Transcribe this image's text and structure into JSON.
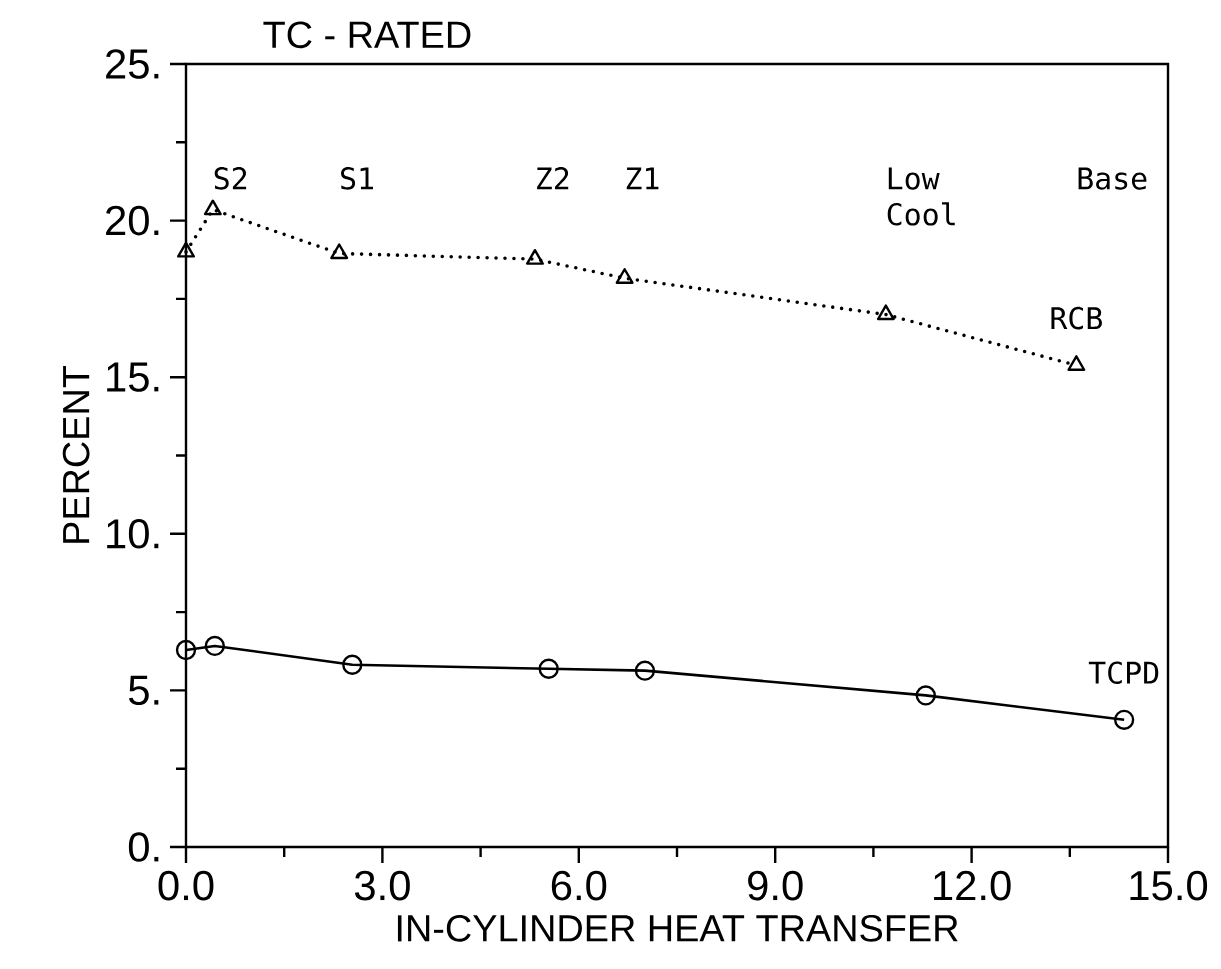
{
  "chart_data": {
    "type": "line",
    "title": "TC - RATED",
    "xlabel": "IN-CYLINDER HEAT TRANSFER",
    "ylabel": "PERCENT",
    "xlim": [
      0,
      15
    ],
    "ylim": [
      0,
      25
    ],
    "xticks": [
      {
        "value": 0,
        "label": "0.0"
      },
      {
        "value": 1.5,
        "label": null
      },
      {
        "value": 3,
        "label": "3.0"
      },
      {
        "value": 4.5,
        "label": null
      },
      {
        "value": 6,
        "label": "6.0"
      },
      {
        "value": 7.5,
        "label": null
      },
      {
        "value": 9,
        "label": "9.0"
      },
      {
        "value": 10.5,
        "label": null
      },
      {
        "value": 12,
        "label": "12.0"
      },
      {
        "value": 13.5,
        "label": null
      },
      {
        "value": 15,
        "label": "15.0"
      }
    ],
    "yticks": [
      {
        "value": 0,
        "label": "0."
      },
      {
        "value": 2.5,
        "label": null
      },
      {
        "value": 5,
        "label": "5."
      },
      {
        "value": 7.5,
        "label": null
      },
      {
        "value": 10,
        "label": "10."
      },
      {
        "value": 12.5,
        "label": null
      },
      {
        "value": 15,
        "label": "15."
      },
      {
        "value": 17.5,
        "label": null
      },
      {
        "value": 20,
        "label": "20."
      },
      {
        "value": 22.5,
        "label": null
      },
      {
        "value": 25,
        "label": "25."
      }
    ],
    "series": [
      {
        "name": "RCB",
        "color": "#000000",
        "marker": "triangle",
        "line_style": "dotted",
        "x": [
          0,
          0.41,
          2.34,
          5.33,
          6.7,
          10.69,
          13.6
        ],
        "values": [
          19.0,
          20.35,
          18.95,
          18.77,
          18.16,
          17.0,
          15.38
        ]
      },
      {
        "name": "TCPD",
        "color": "#000000",
        "marker": "circle",
        "line_style": "solid",
        "x": [
          0,
          0.44,
          2.54,
          5.54,
          7.01,
          11.3,
          14.33
        ],
        "values": [
          6.29,
          6.42,
          5.82,
          5.69,
          5.63,
          4.84,
          4.06
        ]
      }
    ],
    "annotations": [
      "S2",
      "S1",
      "Z2",
      "Z1",
      "Low Cool",
      "Base"
    ]
  }
}
